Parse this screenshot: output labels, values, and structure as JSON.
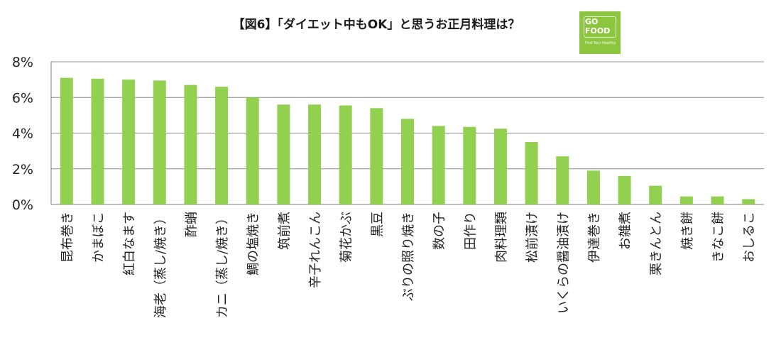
{
  "chart_data": {
    "type": "bar",
    "title": "【図6】「ダイエット中もOK」と思うお正月料理は？",
    "categories": [
      "昆布巻き",
      "かまぼこ",
      "紅白なます",
      "海老（蒸し/焼き）",
      "酢蛸",
      "カニ（蒸し/焼き）",
      "鯛の塩焼き",
      "筑前煮",
      "辛子れんこん",
      "菊花かぶ",
      "黒豆",
      "ぶりの照り焼き",
      "数の子",
      "田作り",
      "肉料理類",
      "松前漬け",
      "いくらの醤油漬け",
      "伊達巻き",
      "お雑煮",
      "栗きんとん",
      "焼き餅",
      "きなこ餅",
      "おしるこ"
    ],
    "values": [
      7.1,
      7.05,
      7.0,
      6.95,
      6.7,
      6.6,
      6.0,
      5.6,
      5.6,
      5.55,
      5.4,
      4.8,
      4.4,
      4.35,
      4.25,
      3.5,
      2.7,
      1.9,
      1.6,
      1.05,
      0.45,
      0.45,
      0.3
    ],
    "ylim": [
      0,
      8
    ],
    "yticks": [
      "0%",
      "2%",
      "4%",
      "6%",
      "8%"
    ],
    "ytick_values": [
      0,
      2,
      4,
      6,
      8
    ],
    "grid": true,
    "bar_color": "#92d050"
  },
  "logo": {
    "line1": "GO",
    "line2": "FOOD",
    "tagline": "Find Your Healthy"
  }
}
